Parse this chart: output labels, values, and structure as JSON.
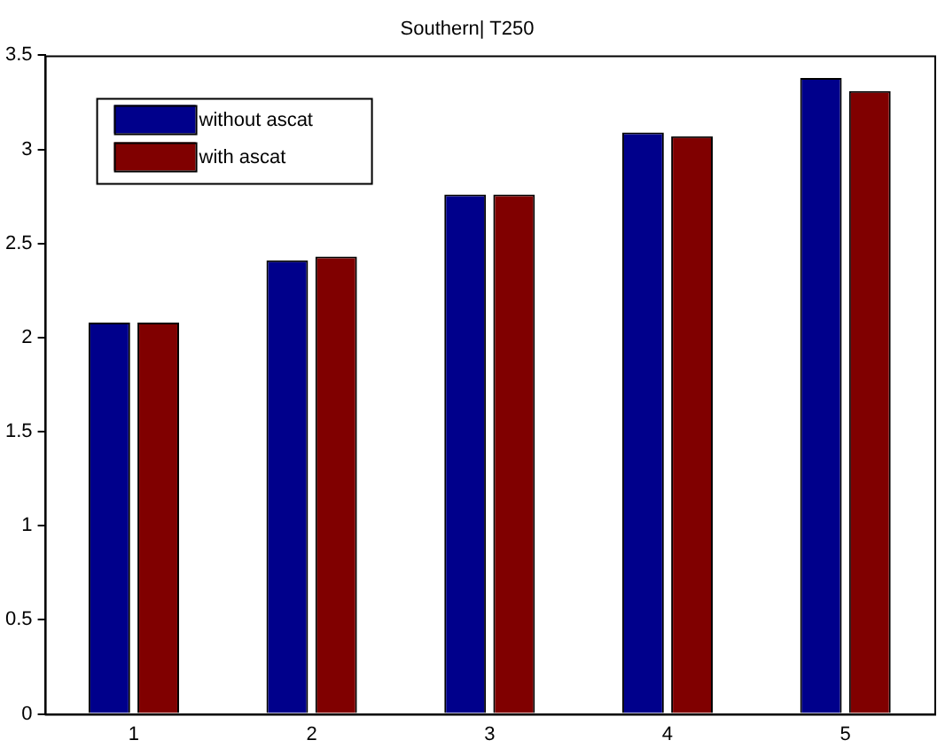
{
  "chart_data": {
    "type": "bar",
    "title": "Southern| T250",
    "categories": [
      "1",
      "2",
      "3",
      "4",
      "5"
    ],
    "series": [
      {
        "name": "without ascat",
        "color": "#00008b",
        "values": [
          2.08,
          2.41,
          2.76,
          3.09,
          3.38
        ]
      },
      {
        "name": "with ascat",
        "color": "#800000",
        "values": [
          2.08,
          2.43,
          2.76,
          3.07,
          3.31
        ]
      }
    ],
    "ylim": [
      0,
      3.5
    ],
    "yticks": [
      0,
      0.5,
      1,
      1.5,
      2,
      2.5,
      3,
      3.5
    ],
    "grid": false,
    "legend": "top left"
  }
}
